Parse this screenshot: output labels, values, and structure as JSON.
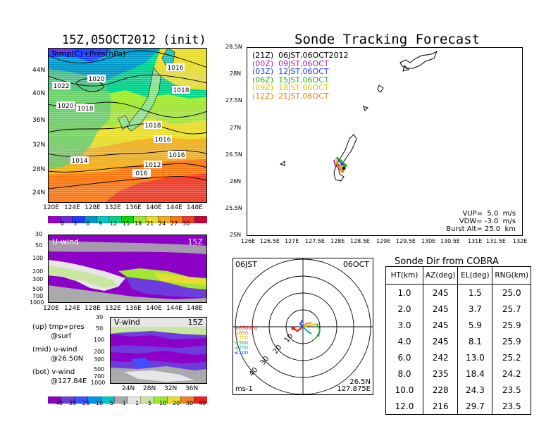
{
  "titles": {
    "left": "15Z,05OCT2012 (init)",
    "right": "Sonde Tracking Forecast",
    "table": "Sonde Dir from COBRA"
  },
  "temp_map": {
    "label": "Temp(C)+Pres(hPa)",
    "lat_labels": [
      "44N",
      "40N",
      "36N",
      "32N",
      "28N",
      "24N"
    ],
    "lon_labels": [
      "120E",
      "124E",
      "128E",
      "132E",
      "136E",
      "140E",
      "144E",
      "148E"
    ],
    "isobars": [
      "1016",
      "1022",
      "1020",
      "1020",
      "1018",
      "1018",
      "1018",
      "1016",
      "1016",
      "1014",
      "1012",
      "016"
    ],
    "colorbar_ticks": [
      "0",
      "3",
      "6",
      "9",
      "12",
      "15",
      "18",
      "21",
      "24",
      "27",
      "30"
    ]
  },
  "u_wind": {
    "label": "U-wind",
    "time": "15Z",
    "pressure_labels": [
      "30",
      "50",
      "100",
      "200",
      "300",
      "500",
      "700",
      "1000"
    ],
    "lon_labels": [
      "120E",
      "124E",
      "128E",
      "132E",
      "136E",
      "140E",
      "144E",
      "148E"
    ]
  },
  "v_wind": {
    "label": "V-wind",
    "time": "15Z",
    "pressure_labels": [
      "30",
      "50",
      "100",
      "200",
      "300",
      "500",
      "700",
      "1000"
    ],
    "lat_labels": [
      "24N",
      "28N",
      "32N",
      "36N"
    ]
  },
  "notes": {
    "line1": "(up) tmp+pres",
    "line2": "@surf",
    "line3": "(mid) u-wind",
    "line4": "@26.50N",
    "line5": "(bot) v-wind",
    "line6": "@127.84E"
  },
  "wind_colorbar_ticks": [
    "-40",
    "-30",
    "-20",
    "-10",
    "-5",
    "-1",
    "1",
    "5",
    "10",
    "20",
    "30",
    "40"
  ],
  "track_map": {
    "legend": [
      {
        "text": "(21Z)  06JST,06OCT2012",
        "color": "#000000"
      },
      {
        "text": "(00Z)  09JST,06OCT",
        "color": "#a020c0"
      },
      {
        "text": "(03Z)  12JST,06OCT",
        "color": "#2040ff"
      },
      {
        "text": "(06Z)  15JST,06OCT",
        "color": "#20b020"
      },
      {
        "text": "(09Z)  18JST,06OCT",
        "color": "#e8c000"
      },
      {
        "text": "(12Z)  21JST,06OCT",
        "color": "#ff8000"
      }
    ],
    "lat_labels": [
      "28.5N",
      "28N",
      "27.5N",
      "27N",
      "26.5N",
      "26N",
      "25.5N",
      "25N"
    ],
    "lon_labels": [
      "126E",
      "126.5E",
      "127E",
      "127.5E",
      "128E",
      "128.5E",
      "129E",
      "129.5E",
      "130E",
      "130.5E",
      "131E",
      "131.5E",
      "132E"
    ],
    "info": [
      "VUP=  5.0  m/s",
      "VDW= -3.0  m/s",
      "Burst Alt= 25.0  km"
    ]
  },
  "polar": {
    "time_label": "06JST",
    "date_label": "06OCT",
    "ring_labels": [
      "10",
      "20",
      "30",
      "40"
    ],
    "legend": [
      {
        "text": "≥850hPa",
        "color": "#ff0000"
      },
      {
        "text": "≤850",
        "color": "#ff8000"
      },
      {
        "text": "≤700",
        "color": "#e8c000"
      },
      {
        "text": "≤500",
        "color": "#20b020"
      },
      {
        "text": "≤250",
        "color": "#00b0b0"
      },
      {
        "text": "≤100",
        "color": "#2040ff"
      }
    ],
    "unit": "ms-1",
    "lat": "26.5N",
    "lon": "127.875E"
  },
  "table": {
    "headers": [
      "HT(km)",
      "AZ(deg)",
      "EL(deg)",
      "RNG(km)"
    ],
    "rows": [
      [
        "1.0",
        "245",
        "1.5",
        "25.0"
      ],
      [
        "2.0",
        "245",
        "3.7",
        "25.7"
      ],
      [
        "3.0",
        "245",
        "5.9",
        "25.9"
      ],
      [
        "4.0",
        "245",
        "8.1",
        "25.9"
      ],
      [
        "6.0",
        "242",
        "13.0",
        "25.2"
      ],
      [
        "8.0",
        "235",
        "18.4",
        "24.2"
      ],
      [
        "10.0",
        "228",
        "24.3",
        "23.5"
      ],
      [
        "12.0",
        "216",
        "29.7",
        "23.5"
      ]
    ]
  },
  "colors": {
    "temp_scale": [
      "#a000c8",
      "#6e28dc",
      "#1e3cff",
      "#0096c8",
      "#00c8c8",
      "#00d28c",
      "#00dc00",
      "#a0e632",
      "#e6dc32",
      "#f0af1e",
      "#fa7814",
      "#f03c28",
      "#c8003c"
    ],
    "wind_scale": [
      "#8c00c8",
      "#6e3cdc",
      "#3c50ff",
      "#0096e6",
      "#00c8c8",
      "#aaaaaa",
      "#e6e6e6",
      "#c8e6a0",
      "#a0e632",
      "#e6dc32",
      "#f08228",
      "#f01e1e"
    ]
  }
}
